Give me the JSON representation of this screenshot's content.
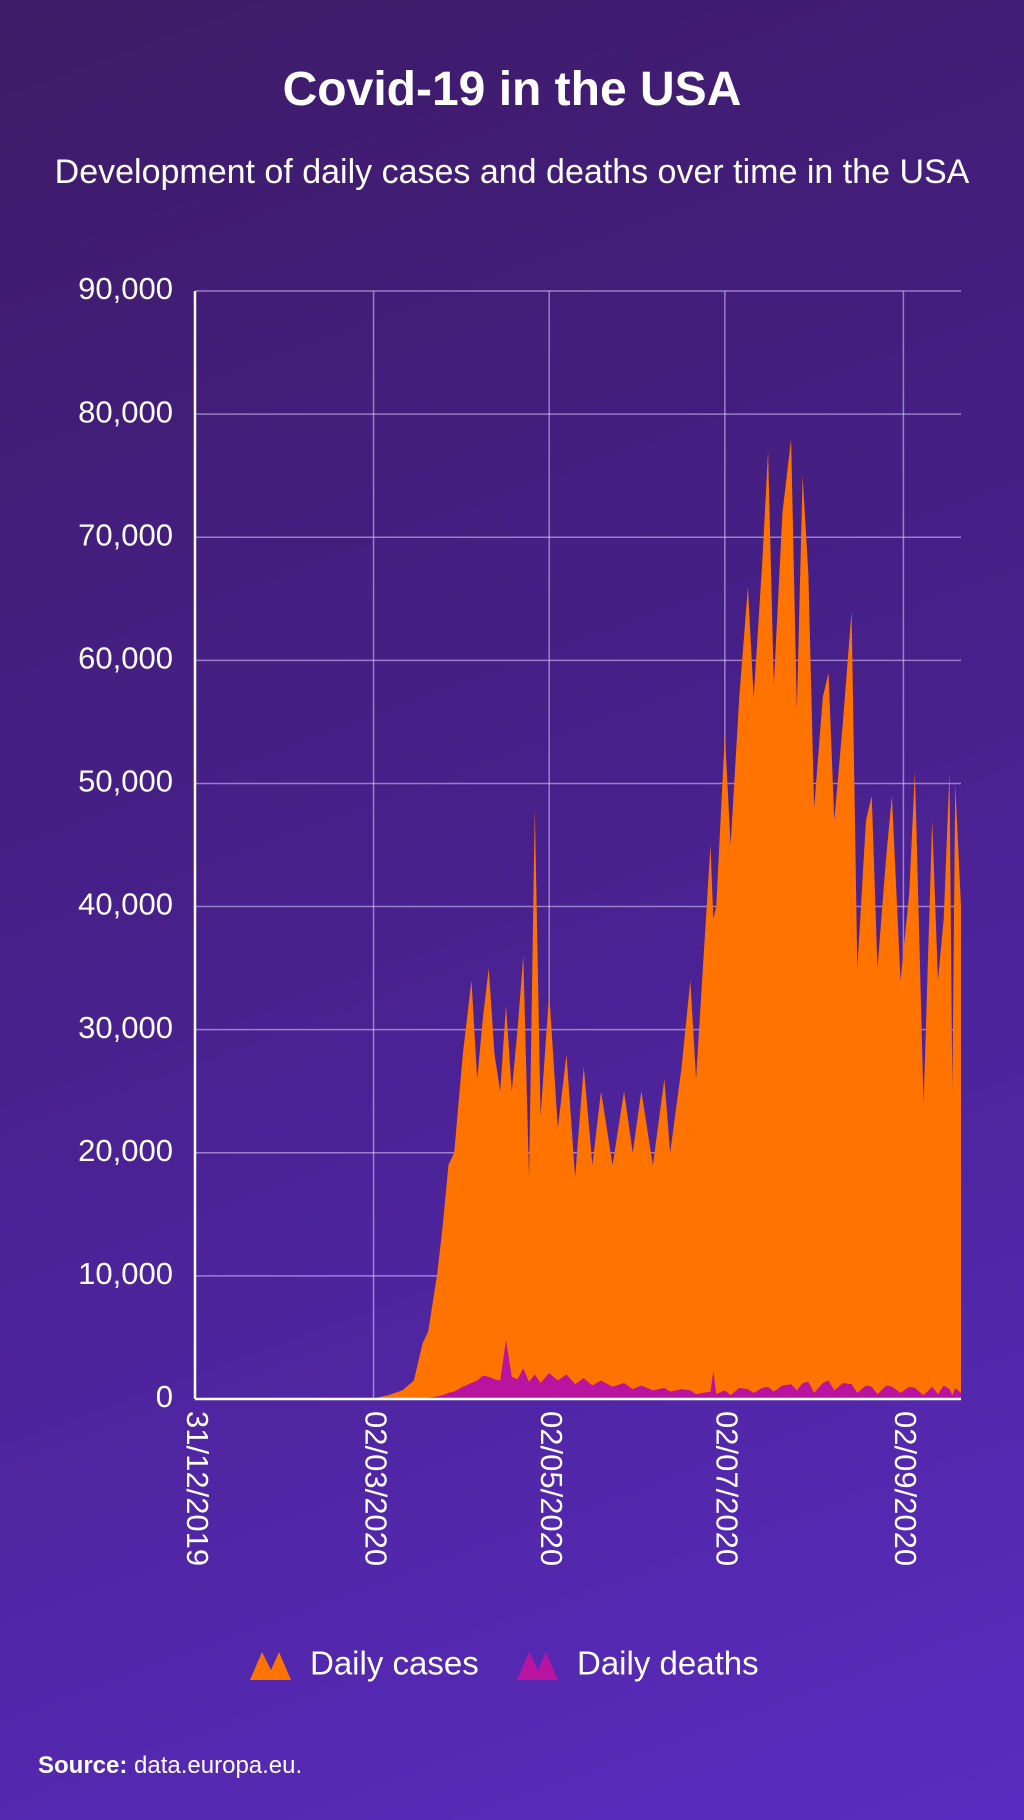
{
  "chart_data": {
    "type": "area",
    "title": "Covid-19 in the USA",
    "subtitle": "Development of daily cases and deaths over time in the USA",
    "source_label": "Source:",
    "source_text": "data.europa.eu.",
    "x": [
      "31/12/2019",
      "15/02/2020",
      "01/03/2020",
      "07/03/2020",
      "12/03/2020",
      "16/03/2020",
      "19/03/2020",
      "21/03/2020",
      "24/03/2020",
      "26/03/2020",
      "28/03/2020",
      "30/03/2020",
      "02/04/2020",
      "05/04/2020",
      "07/04/2020",
      "09/04/2020",
      "11/04/2020",
      "13/04/2020",
      "15/04/2020",
      "17/04/2020",
      "19/04/2020",
      "21/04/2020",
      "23/04/2020",
      "25/04/2020",
      "27/04/2020",
      "29/04/2020",
      "02/05/2020",
      "05/05/2020",
      "08/05/2020",
      "11/05/2020",
      "14/05/2020",
      "17/05/2020",
      "20/05/2020",
      "24/05/2020",
      "28/05/2020",
      "31/05/2020",
      "03/06/2020",
      "07/06/2020",
      "11/06/2020",
      "13/06/2020",
      "17/06/2020",
      "20/06/2020",
      "22/06/2020",
      "27/06/2020",
      "28/06/2020",
      "29/06/2020",
      "02/07/2020",
      "04/07/2020",
      "07/07/2020",
      "10/07/2020",
      "12/07/2020",
      "15/07/2020",
      "17/07/2020",
      "19/07/2020",
      "22/07/2020",
      "25/07/2020",
      "27/07/2020",
      "29/07/2020",
      "31/07/2020",
      "02/08/2020",
      "05/08/2020",
      "07/08/2020",
      "09/08/2020",
      "12/08/2020",
      "15/08/2020",
      "17/08/2020",
      "20/08/2020",
      "22/08/2020",
      "24/08/2020",
      "27/08/2020",
      "29/08/2020",
      "01/09/2020",
      "04/09/2020",
      "06/09/2020",
      "09/09/2020",
      "12/09/2020",
      "14/09/2020",
      "16/09/2020",
      "18/09/2020",
      "19/09/2020",
      "20/09/2020",
      "22/09/2020"
    ],
    "series": [
      {
        "name": "Daily cases",
        "color": "#ff7300",
        "values": [
          0,
          0,
          0,
          300,
          700,
          1500,
          4500,
          5500,
          10000,
          14000,
          19000,
          20000,
          28000,
          34000,
          26000,
          31000,
          35000,
          28000,
          25000,
          32000,
          25000,
          30000,
          36000,
          18000,
          48000,
          23000,
          33000,
          22000,
          28000,
          18000,
          27000,
          19000,
          25000,
          19000,
          25000,
          20000,
          25000,
          19000,
          26000,
          20000,
          27000,
          34000,
          26000,
          45000,
          39000,
          40000,
          54000,
          45000,
          57000,
          66000,
          57000,
          68000,
          77000,
          58000,
          72000,
          78000,
          56000,
          75000,
          67000,
          48000,
          57000,
          59000,
          47000,
          55000,
          64000,
          35000,
          47000,
          49000,
          35000,
          44000,
          49000,
          34000,
          41000,
          51000,
          24000,
          47000,
          34000,
          39000,
          51000,
          25000,
          50000,
          40000
        ]
      },
      {
        "name": "Daily deaths",
        "color": "#b8149f",
        "values": [
          0,
          0,
          0,
          0,
          10,
          20,
          50,
          100,
          200,
          300,
          500,
          600,
          1000,
          1300,
          1500,
          1900,
          1800,
          1600,
          1500,
          4800,
          1800,
          1600,
          2500,
          1400,
          2000,
          1300,
          2100,
          1500,
          2000,
          1200,
          1700,
          1100,
          1500,
          1000,
          1300,
          800,
          1100,
          700,
          900,
          600,
          800,
          700,
          400,
          600,
          2300,
          400,
          700,
          300,
          900,
          800,
          500,
          900,
          1000,
          600,
          1100,
          1200,
          700,
          1300,
          1400,
          500,
          1300,
          1500,
          700,
          1300,
          1200,
          500,
          1100,
          1000,
          400,
          1100,
          1000,
          500,
          1000,
          900,
          300,
          1000,
          400,
          1100,
          800,
          300,
          900,
          500
        ]
      }
    ],
    "xlim": [
      "31/12/2019",
      "22/09/2020"
    ],
    "xticks": [
      "31/12/2019",
      "02/03/2020",
      "02/05/2020",
      "02/07/2020",
      "02/09/2020"
    ],
    "ylim": [
      0,
      90000
    ],
    "yticks": [
      0,
      {
        "value": 10000,
        "label": "10,000"
      },
      {
        "value": 20000,
        "label": "20,000"
      },
      {
        "value": 30000,
        "label": "30,000"
      },
      {
        "value": 40000,
        "label": "40,000"
      },
      {
        "value": 50000,
        "label": "50,000"
      },
      {
        "value": 60000,
        "label": "60,000"
      },
      {
        "value": 70000,
        "label": "70,000"
      },
      {
        "value": 80000,
        "label": "80,000"
      },
      {
        "value": 90000,
        "label": "90,000"
      }
    ],
    "grid": true
  }
}
